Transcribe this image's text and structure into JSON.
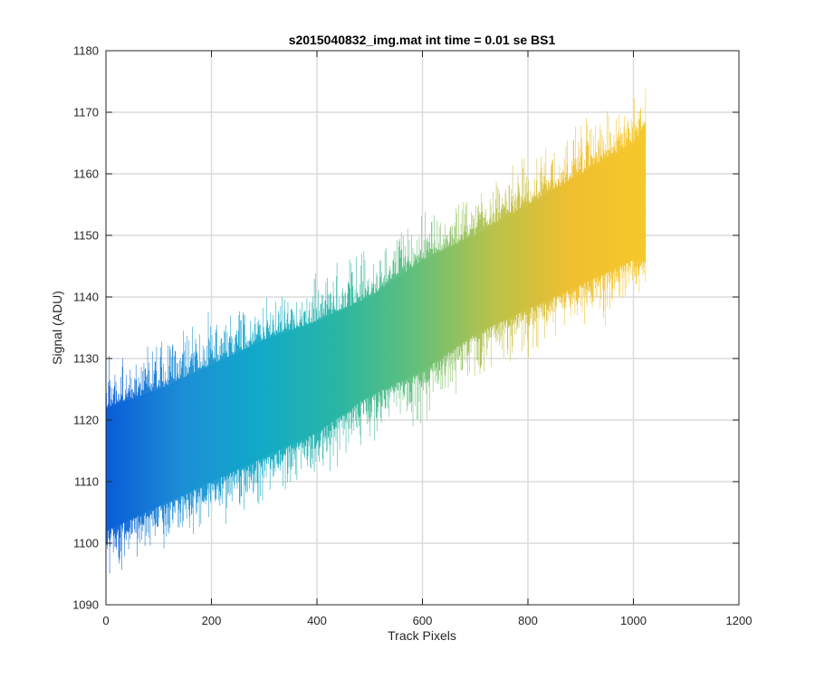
{
  "chart_data": {
    "type": "area",
    "title": "s2015040832_img.mat int time = 0.01 se   BS1",
    "xlabel": "Track Pixels",
    "ylabel": "Signal (ADU)",
    "xlim": [
      0,
      1200
    ],
    "ylim": [
      1090,
      1180
    ],
    "xticks": [
      0,
      200,
      400,
      600,
      800,
      1000,
      1200
    ],
    "yticks": [
      1090,
      1100,
      1110,
      1120,
      1130,
      1140,
      1150,
      1160,
      1170,
      1180
    ],
    "grid": true,
    "colormap": [
      "#0a5cd8",
      "#1c8fd6",
      "#11aac8",
      "#2ab6a3",
      "#62c07a",
      "#b8c24a",
      "#f0bf30",
      "#f6c82a"
    ],
    "series": [
      {
        "x": [
          0,
          100,
          200,
          300,
          400,
          500,
          600,
          700,
          800,
          900,
          1000,
          1023
        ],
        "y_upper": [
          1122,
          1125,
          1129,
          1133,
          1136,
          1140,
          1146,
          1150,
          1155,
          1160,
          1165,
          1168
        ],
        "y_lower": [
          1102,
          1106,
          1110,
          1114,
          1118,
          1124,
          1128,
          1134,
          1138,
          1142,
          1146,
          1146
        ]
      }
    ]
  }
}
